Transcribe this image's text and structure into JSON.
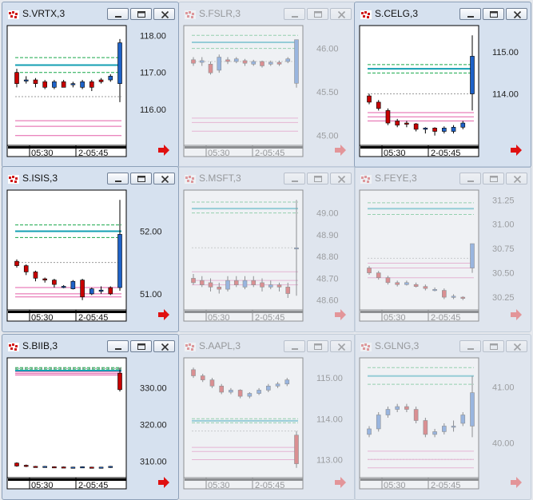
{
  "windows": [
    {
      "id": "vrtx",
      "title": "S.VRTX,3",
      "active": true,
      "yticks": [
        {
          "v": 118,
          "label": "118.00"
        },
        {
          "v": 117,
          "label": "117.00"
        },
        {
          "v": 116,
          "label": "116.00"
        }
      ],
      "xlabels": [
        "05:30",
        "2-05:45"
      ],
      "levels": {
        "green": [
          117.4,
          117.0
        ],
        "teal": 117.2,
        "gray": 116.35,
        "pink": [
          115.7,
          115.55,
          115.3
        ]
      },
      "candles": [
        {
          "o": 117.0,
          "c": 116.7,
          "h": 117.1,
          "l": 116.6
        },
        {
          "o": 116.8,
          "c": 116.8,
          "h": 116.9,
          "l": 116.7
        },
        {
          "o": 116.8,
          "c": 116.7,
          "h": 116.85,
          "l": 116.6
        },
        {
          "o": 116.75,
          "c": 116.6,
          "h": 116.8,
          "l": 116.55
        },
        {
          "o": 116.6,
          "c": 116.75,
          "h": 116.8,
          "l": 116.55
        },
        {
          "o": 116.75,
          "c": 116.6,
          "h": 116.8,
          "l": 116.6
        },
        {
          "o": 116.7,
          "c": 116.7,
          "h": 116.75,
          "l": 116.6
        },
        {
          "o": 116.6,
          "c": 116.75,
          "h": 116.8,
          "l": 116.55
        },
        {
          "o": 116.75,
          "c": 116.6,
          "h": 116.8,
          "l": 116.5
        },
        {
          "o": 116.8,
          "c": 116.75,
          "h": 116.85,
          "l": 116.7
        },
        {
          "o": 116.8,
          "c": 116.9,
          "h": 116.95,
          "l": 116.75
        },
        {
          "o": 116.7,
          "c": 117.8,
          "h": 117.9,
          "l": 116.2
        }
      ]
    },
    {
      "id": "fslr",
      "title": "S.FSLR,3",
      "active": false,
      "yticks": [
        {
          "v": 46,
          "label": "46.00"
        },
        {
          "v": 45.5,
          "label": "45.50"
        },
        {
          "v": 45,
          "label": "45.00"
        }
      ],
      "xlabels": [
        "05:30",
        "2-05:45"
      ],
      "levels": {
        "green": [
          46.15,
          46.0
        ],
        "teal": 46.07,
        "gray": 45.85,
        "pink": [
          45.2,
          45.15,
          45.05
        ]
      },
      "candles": [
        {
          "o": 45.87,
          "c": 45.83,
          "h": 45.9,
          "l": 45.8
        },
        {
          "o": 45.84,
          "c": 45.86,
          "h": 45.9,
          "l": 45.8
        },
        {
          "o": 45.82,
          "c": 45.72,
          "h": 45.85,
          "l": 45.7
        },
        {
          "o": 45.75,
          "c": 45.9,
          "h": 45.93,
          "l": 45.72
        },
        {
          "o": 45.87,
          "c": 45.85,
          "h": 45.9,
          "l": 45.82
        },
        {
          "o": 45.85,
          "c": 45.88,
          "h": 45.9,
          "l": 45.83
        },
        {
          "o": 45.86,
          "c": 45.83,
          "h": 45.88,
          "l": 45.8
        },
        {
          "o": 45.82,
          "c": 45.85,
          "h": 45.87,
          "l": 45.8
        },
        {
          "o": 45.85,
          "c": 45.8,
          "h": 45.86,
          "l": 45.78
        },
        {
          "o": 45.82,
          "c": 45.84,
          "h": 45.86,
          "l": 45.8
        },
        {
          "o": 45.84,
          "c": 45.82,
          "h": 45.86,
          "l": 45.8
        },
        {
          "o": 45.85,
          "c": 45.88,
          "h": 45.9,
          "l": 45.83
        },
        {
          "o": 45.6,
          "c": 46.1,
          "h": 46.1,
          "l": 45.55
        }
      ]
    },
    {
      "id": "celg",
      "title": "S.CELG,3",
      "active": true,
      "yticks": [
        {
          "v": 115,
          "label": "115.00"
        },
        {
          "v": 114,
          "label": "114.00"
        }
      ],
      "xlabels": [
        "05:30",
        "2-05:45"
      ],
      "levels": {
        "green": [
          114.7,
          114.5
        ],
        "teal": 114.6,
        "gray": 114.0,
        "pink": [
          113.55,
          113.45,
          113.35
        ]
      },
      "candles": [
        {
          "o": 113.95,
          "c": 113.8,
          "h": 114.0,
          "l": 113.75
        },
        {
          "o": 113.8,
          "c": 113.65,
          "h": 113.85,
          "l": 113.6
        },
        {
          "o": 113.6,
          "c": 113.3,
          "h": 113.65,
          "l": 113.25
        },
        {
          "o": 113.35,
          "c": 113.25,
          "h": 113.4,
          "l": 113.2
        },
        {
          "o": 113.3,
          "c": 113.28,
          "h": 113.35,
          "l": 113.2
        },
        {
          "o": 113.28,
          "c": 113.15,
          "h": 113.3,
          "l": 113.1
        },
        {
          "o": 113.15,
          "c": 113.18,
          "h": 113.2,
          "l": 113.05
        },
        {
          "o": 113.18,
          "c": 113.1,
          "h": 113.2,
          "l": 113.0
        },
        {
          "o": 113.1,
          "c": 113.18,
          "h": 113.22,
          "l": 113.05
        },
        {
          "o": 113.1,
          "c": 113.2,
          "h": 113.25,
          "l": 113.05
        },
        {
          "o": 113.2,
          "c": 113.3,
          "h": 113.35,
          "l": 113.15
        },
        {
          "o": 114.0,
          "c": 114.9,
          "h": 115.4,
          "l": 113.6
        }
      ]
    },
    {
      "id": "isis",
      "title": "S.ISIS,3",
      "active": true,
      "yticks": [
        {
          "v": 52,
          "label": "52.00"
        },
        {
          "v": 51,
          "label": "51.00"
        }
      ],
      "xlabels": [
        "05:30",
        "2-05:45"
      ],
      "levels": {
        "green": [
          52.1,
          51.9
        ],
        "teal": 52.0,
        "gray": 51.5,
        "pink": [
          51.1,
          51.0,
          50.95
        ]
      },
      "candles": [
        {
          "o": 51.52,
          "c": 51.45,
          "h": 51.55,
          "l": 51.42
        },
        {
          "o": 51.45,
          "c": 51.35,
          "h": 51.47,
          "l": 51.3
        },
        {
          "o": 51.35,
          "c": 51.25,
          "h": 51.37,
          "l": 51.2
        },
        {
          "o": 51.24,
          "c": 51.22,
          "h": 51.26,
          "l": 51.18
        },
        {
          "o": 51.22,
          "c": 51.15,
          "h": 51.24,
          "l": 51.1
        },
        {
          "o": 51.12,
          "c": 51.12,
          "h": 51.14,
          "l": 51.09
        },
        {
          "o": 51.08,
          "c": 51.2,
          "h": 51.22,
          "l": 51.07
        },
        {
          "o": 51.22,
          "c": 50.95,
          "h": 51.24,
          "l": 50.9
        },
        {
          "o": 51.0,
          "c": 51.08,
          "h": 51.1,
          "l": 50.98
        },
        {
          "o": 51.04,
          "c": 51.06,
          "h": 51.12,
          "l": 51.0
        },
        {
          "o": 51.1,
          "c": 51.0,
          "h": 51.12,
          "l": 50.98
        },
        {
          "o": 51.1,
          "c": 51.95,
          "h": 52.5,
          "l": 51.05
        }
      ]
    },
    {
      "id": "msft",
      "title": "S.MSFT,3",
      "active": false,
      "yticks": [
        {
          "v": 49,
          "label": "49.00"
        },
        {
          "v": 48.9,
          "label": "48.90"
        },
        {
          "v": 48.8,
          "label": "48.80"
        },
        {
          "v": 48.7,
          "label": "48.70"
        },
        {
          "v": 48.6,
          "label": "48.60"
        }
      ],
      "xlabels": [
        "05:30",
        "2-05:45"
      ],
      "levels": {
        "green": [
          49.05,
          49.0
        ],
        "teal": 49.02,
        "gray": 48.84,
        "pink": [
          48.73,
          48.69,
          48.67
        ]
      },
      "candles": [
        {
          "o": 48.7,
          "c": 48.68,
          "h": 48.72,
          "l": 48.67
        },
        {
          "o": 48.69,
          "c": 48.67,
          "h": 48.71,
          "l": 48.66
        },
        {
          "o": 48.68,
          "c": 48.66,
          "h": 48.7,
          "l": 48.64
        },
        {
          "o": 48.66,
          "c": 48.65,
          "h": 48.68,
          "l": 48.63
        },
        {
          "o": 48.65,
          "c": 48.69,
          "h": 48.71,
          "l": 48.64
        },
        {
          "o": 48.69,
          "c": 48.67,
          "h": 48.71,
          "l": 48.66
        },
        {
          "o": 48.66,
          "c": 48.69,
          "h": 48.71,
          "l": 48.65
        },
        {
          "o": 48.69,
          "c": 48.67,
          "h": 48.71,
          "l": 48.66
        },
        {
          "o": 48.68,
          "c": 48.66,
          "h": 48.7,
          "l": 48.64
        },
        {
          "o": 48.66,
          "c": 48.67,
          "h": 48.69,
          "l": 48.65
        },
        {
          "o": 48.67,
          "c": 48.66,
          "h": 48.68,
          "l": 48.64
        },
        {
          "o": 48.66,
          "c": 48.63,
          "h": 48.68,
          "l": 48.61
        },
        {
          "o": 48.84,
          "c": 48.84,
          "h": 49.06,
          "l": 48.62
        }
      ]
    },
    {
      "id": "feye",
      "title": "S.FEYE,3",
      "active": false,
      "yticks": [
        {
          "v": 31.25,
          "label": "31.25"
        },
        {
          "v": 31,
          "label": "31.00"
        },
        {
          "v": 30.75,
          "label": "30.75"
        },
        {
          "v": 30.5,
          "label": "30.50"
        },
        {
          "v": 30.25,
          "label": "30.25"
        }
      ],
      "xlabels": [
        "05:30",
        "2-05:45"
      ],
      "levels": {
        "green": [
          31.22,
          31.1
        ],
        "teal": 31.16,
        "gray": 30.65,
        "pink": [
          30.6,
          30.55,
          30.45
        ]
      },
      "candles": [
        {
          "o": 30.55,
          "c": 30.5,
          "h": 30.57,
          "l": 30.48
        },
        {
          "o": 30.5,
          "c": 30.45,
          "h": 30.52,
          "l": 30.43
        },
        {
          "o": 30.45,
          "c": 30.4,
          "h": 30.47,
          "l": 30.38
        },
        {
          "o": 30.4,
          "c": 30.38,
          "h": 30.42,
          "l": 30.36
        },
        {
          "o": 30.38,
          "c": 30.4,
          "h": 30.42,
          "l": 30.37
        },
        {
          "o": 30.38,
          "c": 30.36,
          "h": 30.4,
          "l": 30.35
        },
        {
          "o": 30.36,
          "c": 30.34,
          "h": 30.38,
          "l": 30.32
        },
        {
          "o": 30.33,
          "c": 30.33,
          "h": 30.35,
          "l": 30.31
        },
        {
          "o": 30.32,
          "c": 30.25,
          "h": 30.34,
          "l": 30.23
        },
        {
          "o": 30.25,
          "c": 30.26,
          "h": 30.28,
          "l": 30.23
        },
        {
          "o": 30.25,
          "c": 30.24,
          "h": 30.26,
          "l": 30.22
        },
        {
          "o": 30.55,
          "c": 30.8,
          "h": 30.8,
          "l": 30.5
        }
      ]
    },
    {
      "id": "biib",
      "title": "S.BIIB,3",
      "active": true,
      "yticks": [
        {
          "v": 330,
          "label": "330.00"
        },
        {
          "v": 320,
          "label": "320.00"
        },
        {
          "v": 310,
          "label": "310.00"
        }
      ],
      "xlabels": [
        "05:30",
        "2-05:45"
      ],
      "levels": {
        "green": [
          335.5,
          335.1
        ],
        "teal": 334.7,
        "gray": 335.3,
        "pink": [
          334.3,
          333.9,
          333.5
        ]
      },
      "candles": [
        {
          "o": 309.5,
          "c": 308.7,
          "h": 309.7,
          "l": 308.5
        },
        {
          "o": 308.9,
          "c": 308.6,
          "h": 309.1,
          "l": 308.4
        },
        {
          "o": 308.6,
          "c": 308.4,
          "h": 308.7,
          "l": 308.3
        },
        {
          "o": 308.4,
          "c": 308.6,
          "h": 308.7,
          "l": 308.3
        },
        {
          "o": 308.5,
          "c": 308.4,
          "h": 308.6,
          "l": 308.3
        },
        {
          "o": 308.45,
          "c": 308.4,
          "h": 308.55,
          "l": 308.3
        },
        {
          "o": 308.4,
          "c": 308.4,
          "h": 308.5,
          "l": 308.3
        },
        {
          "o": 308.3,
          "c": 308.5,
          "h": 308.6,
          "l": 308.2
        },
        {
          "o": 308.4,
          "c": 308.35,
          "h": 308.5,
          "l": 308.3
        },
        {
          "o": 308.3,
          "c": 308.4,
          "h": 308.45,
          "l": 308.2
        },
        {
          "o": 308.3,
          "c": 308.6,
          "h": 308.7,
          "l": 308.2
        },
        {
          "o": 334.0,
          "c": 329.5,
          "h": 335.5,
          "l": 329.0
        }
      ]
    },
    {
      "id": "aapl",
      "title": "S.AAPL,3",
      "active": false,
      "yticks": [
        {
          "v": 115,
          "label": "115.00"
        },
        {
          "v": 114,
          "label": "114.00"
        },
        {
          "v": 113,
          "label": "113.00"
        }
      ],
      "xlabels": [
        "05:30",
        "2-05:45"
      ],
      "levels": {
        "green": [
          114.0,
          113.9
        ],
        "teal": 113.95,
        "gray": 113.7,
        "pink": [
          113.3,
          113.2,
          113.0
        ]
      },
      "candles": [
        {
          "o": 115.2,
          "c": 115.05,
          "h": 115.25,
          "l": 115.0
        },
        {
          "o": 115.05,
          "c": 114.95,
          "h": 115.1,
          "l": 114.9
        },
        {
          "o": 114.95,
          "c": 114.8,
          "h": 115.0,
          "l": 114.75
        },
        {
          "o": 114.8,
          "c": 114.65,
          "h": 114.85,
          "l": 114.6
        },
        {
          "o": 114.65,
          "c": 114.7,
          "h": 114.75,
          "l": 114.6
        },
        {
          "o": 114.7,
          "c": 114.55,
          "h": 114.72,
          "l": 114.5
        },
        {
          "o": 114.55,
          "c": 114.62,
          "h": 114.65,
          "l": 114.5
        },
        {
          "o": 114.62,
          "c": 114.7,
          "h": 114.75,
          "l": 114.58
        },
        {
          "o": 114.7,
          "c": 114.8,
          "h": 114.85,
          "l": 114.65
        },
        {
          "o": 114.8,
          "c": 114.85,
          "h": 114.9,
          "l": 114.75
        },
        {
          "o": 114.85,
          "c": 114.95,
          "h": 115.0,
          "l": 114.8
        },
        {
          "o": 113.6,
          "c": 112.9,
          "h": 113.7,
          "l": 112.8
        }
      ]
    },
    {
      "id": "glng",
      "title": "S.GLNG,3",
      "active": false,
      "yticks": [
        {
          "v": 41,
          "label": "41.00"
        },
        {
          "v": 40,
          "label": "40.00"
        }
      ],
      "xlabels": [
        "05:30",
        "2-05:45"
      ],
      "levels": {
        "green": [
          41.35,
          41.05
        ],
        "teal": 41.2,
        "gray": 39.7,
        "pink": [
          39.85,
          39.7,
          39.55
        ]
      },
      "candles": [
        {
          "o": 40.15,
          "c": 40.25,
          "h": 40.3,
          "l": 40.1
        },
        {
          "o": 40.25,
          "c": 40.5,
          "h": 40.55,
          "l": 40.2
        },
        {
          "o": 40.5,
          "c": 40.6,
          "h": 40.65,
          "l": 40.45
        },
        {
          "o": 40.6,
          "c": 40.65,
          "h": 40.7,
          "l": 40.55
        },
        {
          "o": 40.65,
          "c": 40.6,
          "h": 40.7,
          "l": 40.55
        },
        {
          "o": 40.6,
          "c": 40.4,
          "h": 40.65,
          "l": 40.35
        },
        {
          "o": 40.4,
          "c": 40.15,
          "h": 40.45,
          "l": 40.1
        },
        {
          "o": 40.15,
          "c": 40.2,
          "h": 40.25,
          "l": 40.1
        },
        {
          "o": 40.2,
          "c": 40.3,
          "h": 40.35,
          "l": 40.15
        },
        {
          "o": 40.3,
          "c": 40.3,
          "h": 40.4,
          "l": 40.2
        },
        {
          "o": 40.35,
          "c": 40.5,
          "h": 40.55,
          "l": 40.3
        },
        {
          "o": 40.3,
          "c": 40.9,
          "h": 41.2,
          "l": 40.1
        }
      ]
    }
  ],
  "icons": {
    "app": "trading-app-icon",
    "minimize": "minimize-icon",
    "maximize": "maximize-icon",
    "close": "close-icon",
    "scroll": "scroll-right-arrow-icon"
  },
  "colors": {
    "bull": "#1e62c8",
    "bear": "#c80000",
    "green": "#17a84a",
    "teal": "#139fb3",
    "pink": "#e35fa8",
    "gray": "#9a9a9a",
    "arrow": "#e01010"
  }
}
